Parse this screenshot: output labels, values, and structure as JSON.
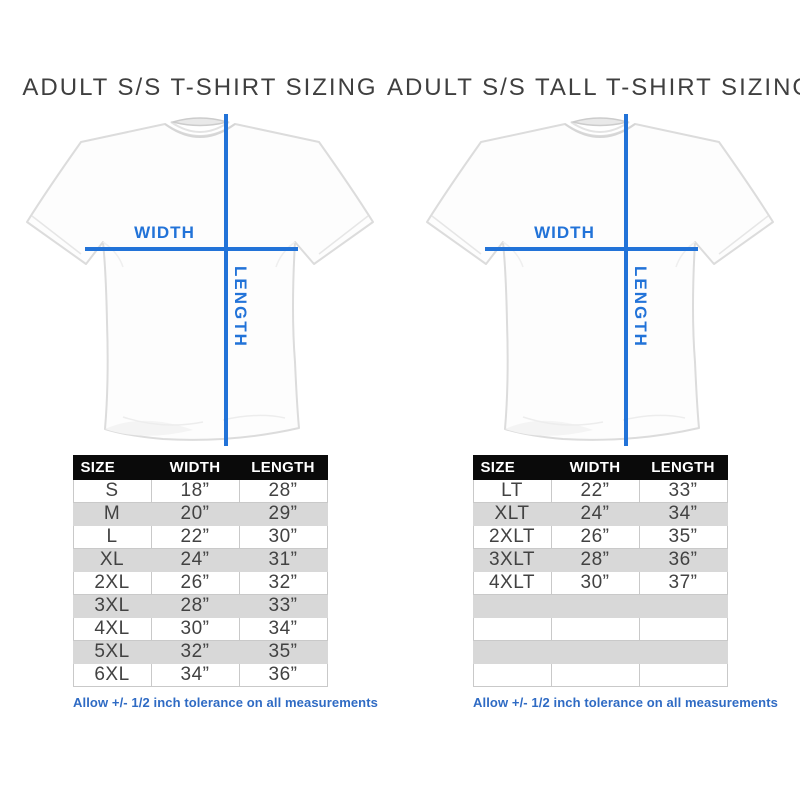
{
  "colors": {
    "accent_blue": "#2273d8",
    "note_blue": "#2f6bc4",
    "header_bg": "#0a0a0a",
    "row_gray": "#d8d8d8"
  },
  "panels": [
    {
      "title": "ADULT S/S T-SHIRT SIZING",
      "diagram": {
        "width_label": "WIDTH",
        "length_label": "LENGTH"
      },
      "table": {
        "headers": [
          "SIZE",
          "WIDTH",
          "LENGTH"
        ],
        "rows": [
          [
            "S",
            "18”",
            "28”"
          ],
          [
            "M",
            "20”",
            "29”"
          ],
          [
            "L",
            "22”",
            "30”"
          ],
          [
            "XL",
            "24”",
            "31”"
          ],
          [
            "2XL",
            "26”",
            "32”"
          ],
          [
            "3XL",
            "28”",
            "33”"
          ],
          [
            "4XL",
            "30”",
            "34”"
          ],
          [
            "5XL",
            "32”",
            "35”"
          ],
          [
            "6XL",
            "34”",
            "36”"
          ]
        ],
        "empty_rows": 0
      },
      "note": "Allow +/- 1/2 inch tolerance on all measurements"
    },
    {
      "title": "ADULT S/S TALL T-SHIRT SIZING",
      "diagram": {
        "width_label": "WIDTH",
        "length_label": "LENGTH"
      },
      "table": {
        "headers": [
          "SIZE",
          "WIDTH",
          "LENGTH"
        ],
        "rows": [
          [
            "LT",
            "22”",
            "33”"
          ],
          [
            "XLT",
            "24”",
            "34”"
          ],
          [
            "2XLT",
            "26”",
            "35”"
          ],
          [
            "3XLT",
            "28”",
            "36”"
          ],
          [
            "4XLT",
            "30”",
            "37”"
          ]
        ],
        "empty_rows": 4
      },
      "note": "Allow +/- 1/2 inch tolerance on all measurements"
    }
  ]
}
